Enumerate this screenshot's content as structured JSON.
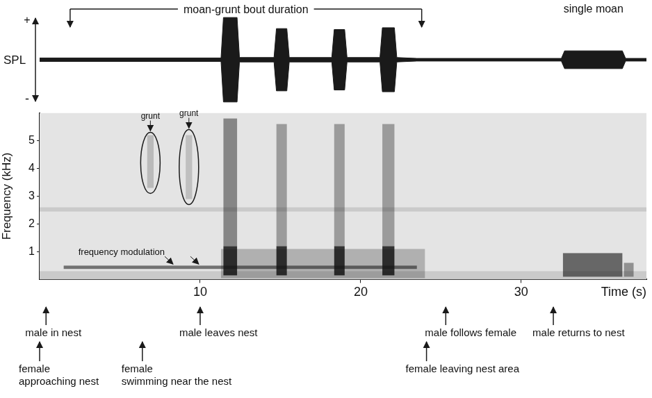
{
  "chart_data": [
    {
      "type": "line",
      "y_label": "SPL",
      "y_marks": [
        "+",
        "-"
      ],
      "xlim": [
        0,
        37.8
      ],
      "ylim": [
        -1,
        1
      ],
      "tick_labels": false,
      "grid": false,
      "color": "#1a1a1a",
      "x": [
        0,
        11.3,
        11.45,
        12.3,
        12.45,
        14.6,
        14.75,
        15.4,
        15.55,
        18.2,
        18.35,
        19.0,
        19.15,
        21.2,
        21.35,
        22.1,
        22.25,
        23.5,
        32.5,
        32.7,
        36.3,
        36.5,
        37.8
      ],
      "values": [
        0.04,
        0.04,
        0.95,
        0.95,
        0.05,
        0.05,
        0.7,
        0.7,
        0.05,
        0.05,
        0.68,
        0.68,
        0.05,
        0.05,
        0.72,
        0.72,
        0.05,
        0.03,
        0.03,
        0.2,
        0.2,
        0.03,
        0.03
      ],
      "bracket": {
        "text": "moan-grunt bout duration",
        "start": 1.9,
        "end": 23.8
      },
      "label": {
        "text": "single moan",
        "x": 34.5
      }
    },
    {
      "type": "spectrogram",
      "y_label": "Frequency (kHz)",
      "x_label": "Time (s)",
      "xlim": [
        0,
        37.8
      ],
      "ylim": [
        0,
        6
      ],
      "xticks": [
        10,
        20,
        30
      ],
      "yticks": [
        1,
        2,
        3,
        4,
        5
      ],
      "grid": false,
      "sounds": [
        {
          "start": 0,
          "end": 37.8,
          "low": 2.45,
          "high": 2.6,
          "level": 0.12
        },
        {
          "start": 0,
          "end": 37.8,
          "low": 0,
          "high": 0.3,
          "level": 0.12
        },
        {
          "start": 1.5,
          "end": 23.5,
          "low": 0.38,
          "high": 0.5,
          "level": 0.55
        },
        {
          "start": 11.3,
          "end": 24.0,
          "low": 0.05,
          "high": 1.1,
          "level": 0.25
        },
        {
          "start": 6.7,
          "end": 7.1,
          "low": 3.3,
          "high": 5.2,
          "level": 0.2
        },
        {
          "start": 9.1,
          "end": 9.5,
          "low": 2.9,
          "high": 5.2,
          "level": 0.18
        },
        {
          "start": 11.45,
          "end": 12.3,
          "low": 1.2,
          "high": 5.8,
          "level": 0.45
        },
        {
          "start": 14.75,
          "end": 15.4,
          "low": 1.2,
          "high": 5.6,
          "level": 0.35
        },
        {
          "start": 18.35,
          "end": 19.0,
          "low": 1.2,
          "high": 5.6,
          "level": 0.35
        },
        {
          "start": 21.35,
          "end": 22.1,
          "low": 1.2,
          "high": 5.6,
          "level": 0.35
        },
        {
          "start": 11.45,
          "end": 12.3,
          "low": 0.15,
          "high": 1.2,
          "level": 0.85
        },
        {
          "start": 14.75,
          "end": 15.4,
          "low": 0.15,
          "high": 1.2,
          "level": 0.85
        },
        {
          "start": 18.35,
          "end": 19.0,
          "low": 0.15,
          "high": 1.2,
          "level": 0.85
        },
        {
          "start": 21.35,
          "end": 22.1,
          "low": 0.15,
          "high": 1.2,
          "level": 0.85
        },
        {
          "start": 32.6,
          "end": 36.3,
          "low": 0.1,
          "high": 0.95,
          "level": 0.6
        },
        {
          "start": 36.4,
          "end": 37.0,
          "low": 0.1,
          "high": 0.6,
          "level": 0.4
        }
      ],
      "grunt_marks": [
        {
          "text": "grunt",
          "x": 6.9,
          "low": 3.1,
          "high": 5.3
        },
        {
          "text": "grunt",
          "x": 9.3,
          "low": 2.7,
          "high": 5.4
        }
      ],
      "modulation": {
        "text": "frequency modulation",
        "targets": [
          8.4,
          10.0
        ],
        "y": 0.48
      },
      "behaviour": {
        "male": [
          {
            "text": [
              "male in nest"
            ],
            "x": 0.4
          },
          {
            "text": [
              "male leaves nest"
            ],
            "x": 10.0
          },
          {
            "text": [
              "male follows female"
            ],
            "x": 25.3
          },
          {
            "text": [
              "male returns to nest"
            ],
            "x": 32.0
          }
        ],
        "female": [
          {
            "text": [
              "female",
              "approaching nest"
            ],
            "x": 0.0
          },
          {
            "text": [
              "female",
              "swimming near the nest"
            ],
            "x": 6.4
          },
          {
            "text": [
              "female leaving nest area"
            ],
            "x": 24.1
          }
        ]
      }
    }
  ]
}
